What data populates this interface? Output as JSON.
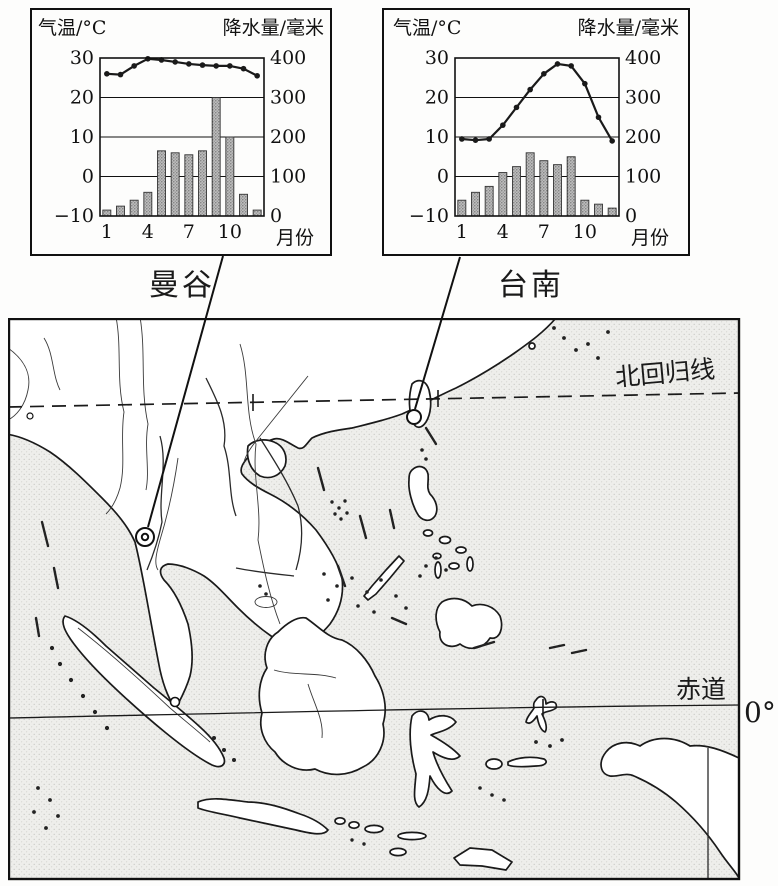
{
  "chart_data": [
    {
      "type": "bar",
      "subtype": "climograph: precipitation bars (right axis) + temperature line (left axis)",
      "title": "曼谷",
      "left_axis_title": "气温/°C",
      "right_axis_title": "降水量/毫米",
      "xlabel": "月份",
      "x": [
        1,
        2,
        3,
        4,
        5,
        6,
        7,
        8,
        9,
        10,
        11,
        12
      ],
      "x_tick_labels": [
        1,
        4,
        7,
        10
      ],
      "left_ylim": [
        -10,
        30
      ],
      "right_ylim": [
        0,
        400
      ],
      "left_tick_labels": [
        30,
        20,
        10,
        0,
        -10
      ],
      "right_tick_labels": [
        400,
        300,
        200,
        100,
        0
      ],
      "grid": true,
      "legend": false,
      "series": [
        {
          "name": "气温/°C",
          "type": "line",
          "axis": "left",
          "values": [
            26,
            25.8,
            28,
            29.8,
            29.5,
            29,
            28.5,
            28.2,
            28,
            28,
            27.3,
            25.5
          ]
        },
        {
          "name": "降水量/毫米",
          "type": "bar",
          "axis": "right",
          "values": [
            15,
            25,
            40,
            60,
            165,
            160,
            155,
            165,
            300,
            200,
            55,
            15
          ]
        }
      ]
    },
    {
      "type": "bar",
      "subtype": "climograph: precipitation bars (right axis) + temperature line (left axis)",
      "title": "台南",
      "left_axis_title": "气温/°C",
      "right_axis_title": "降水量/毫米",
      "xlabel": "月份",
      "x": [
        1,
        2,
        3,
        4,
        5,
        6,
        7,
        8,
        9,
        10,
        11,
        12
      ],
      "x_tick_labels": [
        1,
        4,
        7,
        10
      ],
      "left_ylim": [
        -10,
        30
      ],
      "right_ylim": [
        0,
        400
      ],
      "left_tick_labels": [
        30,
        20,
        10,
        0,
        -10
      ],
      "right_tick_labels": [
        400,
        300,
        200,
        100,
        0
      ],
      "grid": true,
      "legend": false,
      "series": [
        {
          "name": "气温/°C",
          "type": "line",
          "axis": "left",
          "values": [
            9.5,
            9.2,
            9.5,
            13,
            17.5,
            22,
            26,
            28.5,
            28,
            23.5,
            15,
            9
          ]
        },
        {
          "name": "降水量/毫米",
          "type": "bar",
          "axis": "right",
          "values": [
            40,
            60,
            75,
            110,
            125,
            160,
            140,
            130,
            150,
            40,
            30,
            20
          ]
        }
      ]
    }
  ],
  "map": {
    "labels": {
      "tropic_of_cancer": "北回归线",
      "equator": "赤道",
      "equator_degree": "0°"
    },
    "markers": [
      {
        "city": "曼谷",
        "symbol": "double-circle"
      },
      {
        "city": "台南",
        "symbol": "circle"
      }
    ],
    "colors": {
      "ink": "#1a1a1a",
      "sea_tint": "#e9e9e6",
      "land": "#ffffff",
      "bar_fill": "#bdbdbd"
    }
  }
}
